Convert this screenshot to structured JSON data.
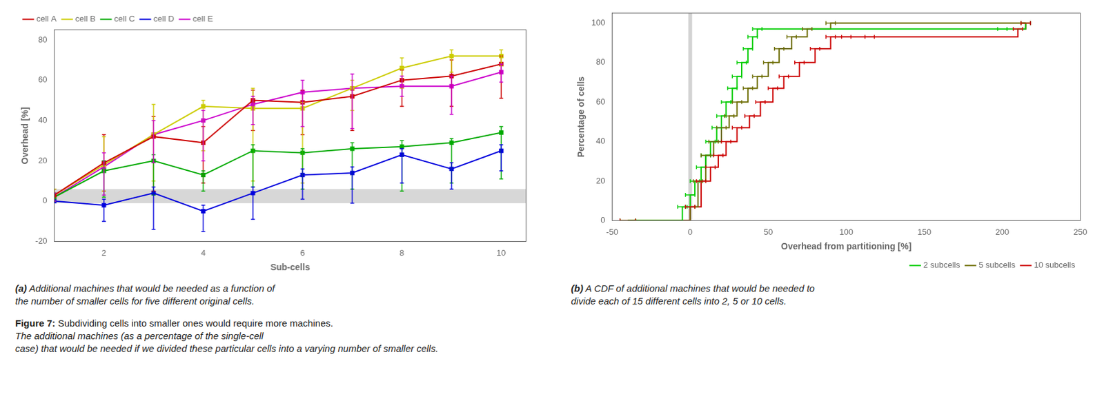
{
  "chart_data": [
    {
      "type": "line",
      "xlabel": "Sub-cells",
      "ylabel": "Overhead [%]",
      "xlim": [
        1,
        10.5
      ],
      "ylim": [
        -20,
        85
      ],
      "xticks": [
        2,
        4,
        6,
        8,
        10
      ],
      "yticks": [
        -20,
        0,
        20,
        40,
        60,
        80
      ],
      "grid": false,
      "legend": "upper left",
      "marker": "square",
      "band": {
        "from": -1,
        "to": 6,
        "color": "lightgray"
      },
      "caption": {
        "label": "(a)",
        "text": "Additional machines that would be needed as a function of\nthe number of smaller cells for five different original cells."
      },
      "x": [
        1,
        2,
        3,
        4,
        5,
        6,
        7,
        8,
        9,
        10
      ],
      "series": [
        {
          "name": "cell A",
          "color": "#cc0000",
          "values": [
            3,
            19,
            32,
            29,
            50,
            49,
            52,
            60,
            62,
            68
          ],
          "yerr_lo": [
            3,
            14,
            27,
            20,
            15,
            16,
            17,
            13,
            15,
            17
          ],
          "yerr_hi": [
            3,
            14,
            10,
            8,
            5,
            6,
            3,
            5,
            8,
            4
          ]
        },
        {
          "name": "cell B",
          "color": "#cccc00",
          "values": [
            3,
            18,
            33,
            47,
            46,
            46,
            56,
            66,
            72,
            72
          ],
          "yerr_lo": [
            3,
            13,
            23,
            22,
            36,
            37,
            11,
            10,
            8,
            5
          ],
          "yerr_hi": [
            3,
            14,
            15,
            3,
            10,
            3,
            4,
            5,
            3,
            3
          ]
        },
        {
          "name": "cell C",
          "color": "#00aa00",
          "values": [
            2,
            15,
            20,
            13,
            25,
            24,
            26,
            27,
            29,
            34
          ],
          "yerr_lo": [
            2,
            13,
            17,
            8,
            18,
            18,
            20,
            22,
            20,
            23
          ],
          "yerr_hi": [
            2,
            5,
            3,
            2,
            3,
            2,
            3,
            3,
            2,
            3
          ]
        },
        {
          "name": "cell D",
          "color": "#0000dd",
          "values": [
            0,
            -2,
            4,
            -5,
            4,
            13,
            14,
            23,
            16,
            25
          ],
          "yerr_lo": [
            0,
            8,
            18,
            10,
            13,
            12,
            15,
            14,
            10,
            10
          ],
          "yerr_hi": [
            0,
            3,
            3,
            3,
            3,
            3,
            3,
            3,
            3,
            3
          ]
        },
        {
          "name": "cell E",
          "color": "#cc00cc",
          "values": [
            2,
            17,
            33,
            40,
            48,
            54,
            56,
            57,
            57,
            64
          ],
          "yerr_lo": [
            2,
            14,
            14,
            20,
            10,
            17,
            20,
            5,
            14,
            5
          ],
          "yerr_hi": [
            2,
            7,
            7,
            5,
            4,
            6,
            7,
            5,
            5,
            4
          ]
        }
      ]
    },
    {
      "type": "step",
      "xlabel": "Overhead from partitioning [%]",
      "ylabel": "Percentage of cells",
      "xlim": [
        -50,
        250
      ],
      "ylim": [
        0,
        105
      ],
      "xticks": [
        -50,
        0,
        50,
        100,
        150,
        200,
        250
      ],
      "yticks": [
        0,
        20,
        40,
        60,
        80,
        100
      ],
      "grid": false,
      "legend": "lower right",
      "vline": {
        "x": 0,
        "color": "lightgray"
      },
      "caption": {
        "label": "(b)",
        "text": "A CDF of additional machines that would be needed to\ndivide each of 15 different cells into 2, 5 or 10 cells."
      },
      "series": [
        {
          "name": "2 subcells",
          "color": "#00cc00",
          "x": [
            -40,
            -5,
            0,
            3,
            7,
            10,
            13,
            17,
            20,
            23,
            27,
            30,
            33,
            37,
            40,
            43,
            200,
            215
          ],
          "values": [
            0,
            7,
            13,
            20,
            27,
            33,
            40,
            47,
            53,
            60,
            67,
            73,
            80,
            87,
            93,
            97,
            97,
            100
          ],
          "xerr": [
            5,
            3,
            3,
            3,
            3,
            3,
            3,
            3,
            3,
            3,
            3,
            3,
            3,
            3,
            3,
            3,
            3,
            3
          ]
        },
        {
          "name": "5 subcells",
          "color": "#6b6b00",
          "x": [
            -40,
            0,
            5,
            10,
            15,
            20,
            25,
            30,
            37,
            43,
            50,
            57,
            65,
            75,
            90,
            215
          ],
          "values": [
            0,
            7,
            20,
            33,
            40,
            47,
            53,
            60,
            67,
            73,
            80,
            87,
            93,
            97,
            100,
            100
          ],
          "xerr": [
            5,
            3,
            3,
            3,
            3,
            3,
            3,
            3,
            3,
            3,
            3,
            3,
            3,
            3,
            3,
            3
          ]
        },
        {
          "name": "10 subcells",
          "color": "#cc0000",
          "x": [
            -40,
            0,
            7,
            13,
            18,
            23,
            30,
            38,
            45,
            53,
            60,
            70,
            80,
            90,
            100,
            115,
            210,
            215
          ],
          "values": [
            0,
            7,
            20,
            27,
            33,
            40,
            47,
            53,
            60,
            67,
            73,
            80,
            87,
            93,
            93,
            93,
            97,
            100
          ],
          "xerr": [
            5,
            3,
            3,
            3,
            3,
            3,
            3,
            3,
            3,
            3,
            3,
            3,
            3,
            3,
            3,
            3,
            3,
            3
          ]
        }
      ]
    }
  ],
  "figure_caption": {
    "label": "Figure 7:",
    "text": "Subdividing cells into smaller ones would require more machines.",
    "note": "The additional machines (as a percentage of the single-cell\ncase) that would be needed if we divided these particular cells into a varying number of smaller cells."
  }
}
